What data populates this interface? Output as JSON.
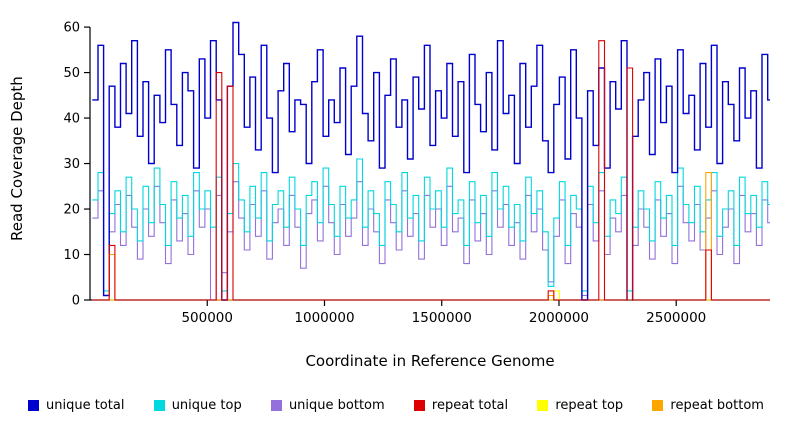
{
  "figure": {
    "background": "#ffffff"
  },
  "chart_data": {
    "type": "line",
    "title": "",
    "xlabel": "Coordinate in Reference Genome",
    "ylabel": "Read Coverage Depth",
    "xlim": [
      0,
      2900000
    ],
    "ylim": [
      0,
      62
    ],
    "x_ticks": [
      500000,
      1000000,
      1500000,
      2000000,
      2500000
    ],
    "y_ticks": [
      0,
      10,
      20,
      30,
      40,
      50,
      60
    ],
    "grid": false,
    "legend_position": "bottom",
    "line_style": "step",
    "x_start": 10000,
    "x_step": 24000,
    "draw_order": [
      2,
      1,
      0,
      4,
      5,
      3
    ],
    "series": [
      {
        "name": "unique total",
        "color": "#0000CC",
        "values": [
          44,
          56,
          1,
          47,
          38,
          52,
          41,
          57,
          36,
          48,
          30,
          45,
          39,
          55,
          43,
          34,
          50,
          46,
          29,
          53,
          40,
          57,
          44,
          0,
          47,
          61,
          54,
          38,
          49,
          33,
          56,
          40,
          28,
          46,
          52,
          37,
          44,
          43,
          30,
          48,
          55,
          36,
          44,
          39,
          51,
          32,
          47,
          58,
          41,
          35,
          50,
          29,
          45,
          53,
          38,
          44,
          31,
          49,
          42,
          56,
          34,
          46,
          40,
          52,
          36,
          48,
          28,
          54,
          43,
          37,
          50,
          33,
          57,
          41,
          45,
          30,
          52,
          38,
          47,
          56,
          35,
          28,
          43,
          49,
          31,
          55,
          40,
          0,
          46,
          34,
          51,
          29,
          48,
          42,
          57,
          0,
          36,
          44,
          50,
          32,
          53,
          39,
          47,
          28,
          55,
          41,
          45,
          33,
          52,
          38,
          56,
          30,
          48,
          43,
          35,
          51,
          40,
          46,
          29,
          54,
          44
        ]
      },
      {
        "name": "unique top",
        "color": "#00D8E0",
        "values": [
          22,
          28,
          2,
          19,
          24,
          15,
          27,
          20,
          13,
          25,
          17,
          29,
          21,
          12,
          26,
          18,
          23,
          14,
          28,
          20,
          24,
          16,
          27,
          2,
          19,
          30,
          22,
          15,
          25,
          18,
          28,
          13,
          21,
          24,
          16,
          27,
          20,
          12,
          23,
          26,
          17,
          29,
          21,
          14,
          25,
          18,
          22,
          31,
          16,
          24,
          19,
          12,
          26,
          21,
          15,
          28,
          18,
          23,
          13,
          27,
          20,
          24,
          16,
          29,
          19,
          22,
          12,
          26,
          17,
          23,
          14,
          28,
          20,
          25,
          16,
          21,
          13,
          27,
          19,
          24,
          15,
          3,
          18,
          26,
          12,
          23,
          20,
          2,
          25,
          17,
          28,
          14,
          22,
          19,
          27,
          2,
          16,
          24,
          20,
          13,
          26,
          18,
          23,
          12,
          29,
          21,
          17,
          25,
          15,
          22,
          28,
          14,
          20,
          24,
          12,
          27,
          19,
          23,
          16,
          26,
          21
        ]
      },
      {
        "name": "unique bottom",
        "color": "#9370DB",
        "values": [
          18,
          24,
          1,
          15,
          21,
          12,
          23,
          16,
          9,
          20,
          14,
          25,
          17,
          8,
          22,
          13,
          19,
          10,
          24,
          16,
          20,
          0,
          23,
          6,
          15,
          26,
          18,
          11,
          21,
          14,
          24,
          9,
          17,
          20,
          12,
          23,
          16,
          7,
          19,
          22,
          13,
          25,
          17,
          10,
          21,
          14,
          18,
          26,
          12,
          20,
          15,
          8,
          22,
          17,
          11,
          24,
          14,
          19,
          9,
          23,
          16,
          20,
          12,
          25,
          15,
          18,
          8,
          22,
          13,
          19,
          10,
          24,
          16,
          21,
          12,
          17,
          9,
          23,
          15,
          20,
          11,
          4,
          14,
          22,
          8,
          19,
          16,
          1,
          21,
          13,
          24,
          10,
          18,
          15,
          23,
          0,
          12,
          20,
          16,
          9,
          22,
          14,
          19,
          8,
          25,
          17,
          13,
          21,
          11,
          18,
          24,
          10,
          16,
          20,
          8,
          23,
          15,
          19,
          12,
          22,
          17
        ]
      },
      {
        "name": "repeat total",
        "color": "#DD0000",
        "values": [
          0,
          0,
          0,
          12,
          0,
          0,
          0,
          0,
          0,
          0,
          0,
          0,
          0,
          0,
          0,
          0,
          0,
          0,
          0,
          0,
          0,
          0,
          50,
          0,
          47,
          0,
          0,
          0,
          0,
          0,
          0,
          0,
          0,
          0,
          0,
          0,
          0,
          0,
          0,
          0,
          0,
          0,
          0,
          0,
          0,
          0,
          0,
          0,
          0,
          0,
          0,
          0,
          0,
          0,
          0,
          0,
          0,
          0,
          0,
          0,
          0,
          0,
          0,
          0,
          0,
          0,
          0,
          0,
          0,
          0,
          0,
          0,
          0,
          0,
          0,
          0,
          0,
          0,
          0,
          0,
          0,
          2,
          0,
          0,
          0,
          0,
          0,
          0,
          0,
          0,
          57,
          0,
          0,
          0,
          0,
          51,
          0,
          0,
          0,
          0,
          0,
          0,
          0,
          0,
          0,
          0,
          0,
          0,
          0,
          11,
          0,
          0,
          0,
          0,
          0,
          0,
          0,
          0,
          0,
          0,
          0
        ]
      },
      {
        "name": "repeat top",
        "color": "#FFFF00",
        "values": [
          0,
          0,
          0,
          0,
          0,
          0,
          0,
          0,
          0,
          0,
          0,
          0,
          0,
          0,
          0,
          0,
          0,
          0,
          0,
          0,
          0,
          0,
          0,
          0,
          0,
          0,
          0,
          0,
          0,
          0,
          0,
          0,
          0,
          0,
          0,
          0,
          0,
          0,
          0,
          0,
          0,
          0,
          0,
          0,
          0,
          0,
          0,
          0,
          0,
          0,
          0,
          0,
          0,
          0,
          0,
          0,
          0,
          0,
          0,
          0,
          0,
          0,
          0,
          0,
          0,
          0,
          0,
          0,
          0,
          0,
          0,
          0,
          0,
          0,
          0,
          0,
          0,
          0,
          0,
          0,
          0,
          0,
          2,
          0,
          0,
          0,
          0,
          0,
          0,
          0,
          0,
          0,
          0,
          0,
          0,
          0,
          0,
          0,
          0,
          0,
          0,
          0,
          0,
          0,
          0,
          0,
          0,
          0,
          0,
          0,
          0,
          0,
          0,
          0,
          0,
          0,
          0,
          0,
          0,
          0,
          0
        ]
      },
      {
        "name": "repeat bottom",
        "color": "#FFA500",
        "values": [
          0,
          0,
          0,
          10,
          0,
          0,
          0,
          0,
          0,
          0,
          0,
          0,
          0,
          0,
          0,
          0,
          0,
          0,
          0,
          0,
          0,
          0,
          0,
          0,
          0,
          0,
          0,
          0,
          0,
          0,
          0,
          0,
          0,
          0,
          0,
          0,
          0,
          0,
          0,
          0,
          0,
          0,
          0,
          0,
          0,
          0,
          0,
          0,
          0,
          0,
          0,
          0,
          0,
          0,
          0,
          0,
          0,
          0,
          0,
          0,
          0,
          0,
          0,
          0,
          0,
          0,
          0,
          0,
          0,
          0,
          0,
          0,
          0,
          0,
          0,
          0,
          0,
          0,
          0,
          0,
          0,
          1,
          0,
          0,
          0,
          0,
          0,
          0,
          0,
          0,
          0,
          0,
          0,
          0,
          0,
          0,
          0,
          0,
          0,
          0,
          0,
          0,
          0,
          0,
          0,
          0,
          0,
          0,
          0,
          28,
          0,
          0,
          0,
          0,
          0,
          0,
          0,
          0,
          0,
          0,
          0
        ]
      }
    ]
  }
}
